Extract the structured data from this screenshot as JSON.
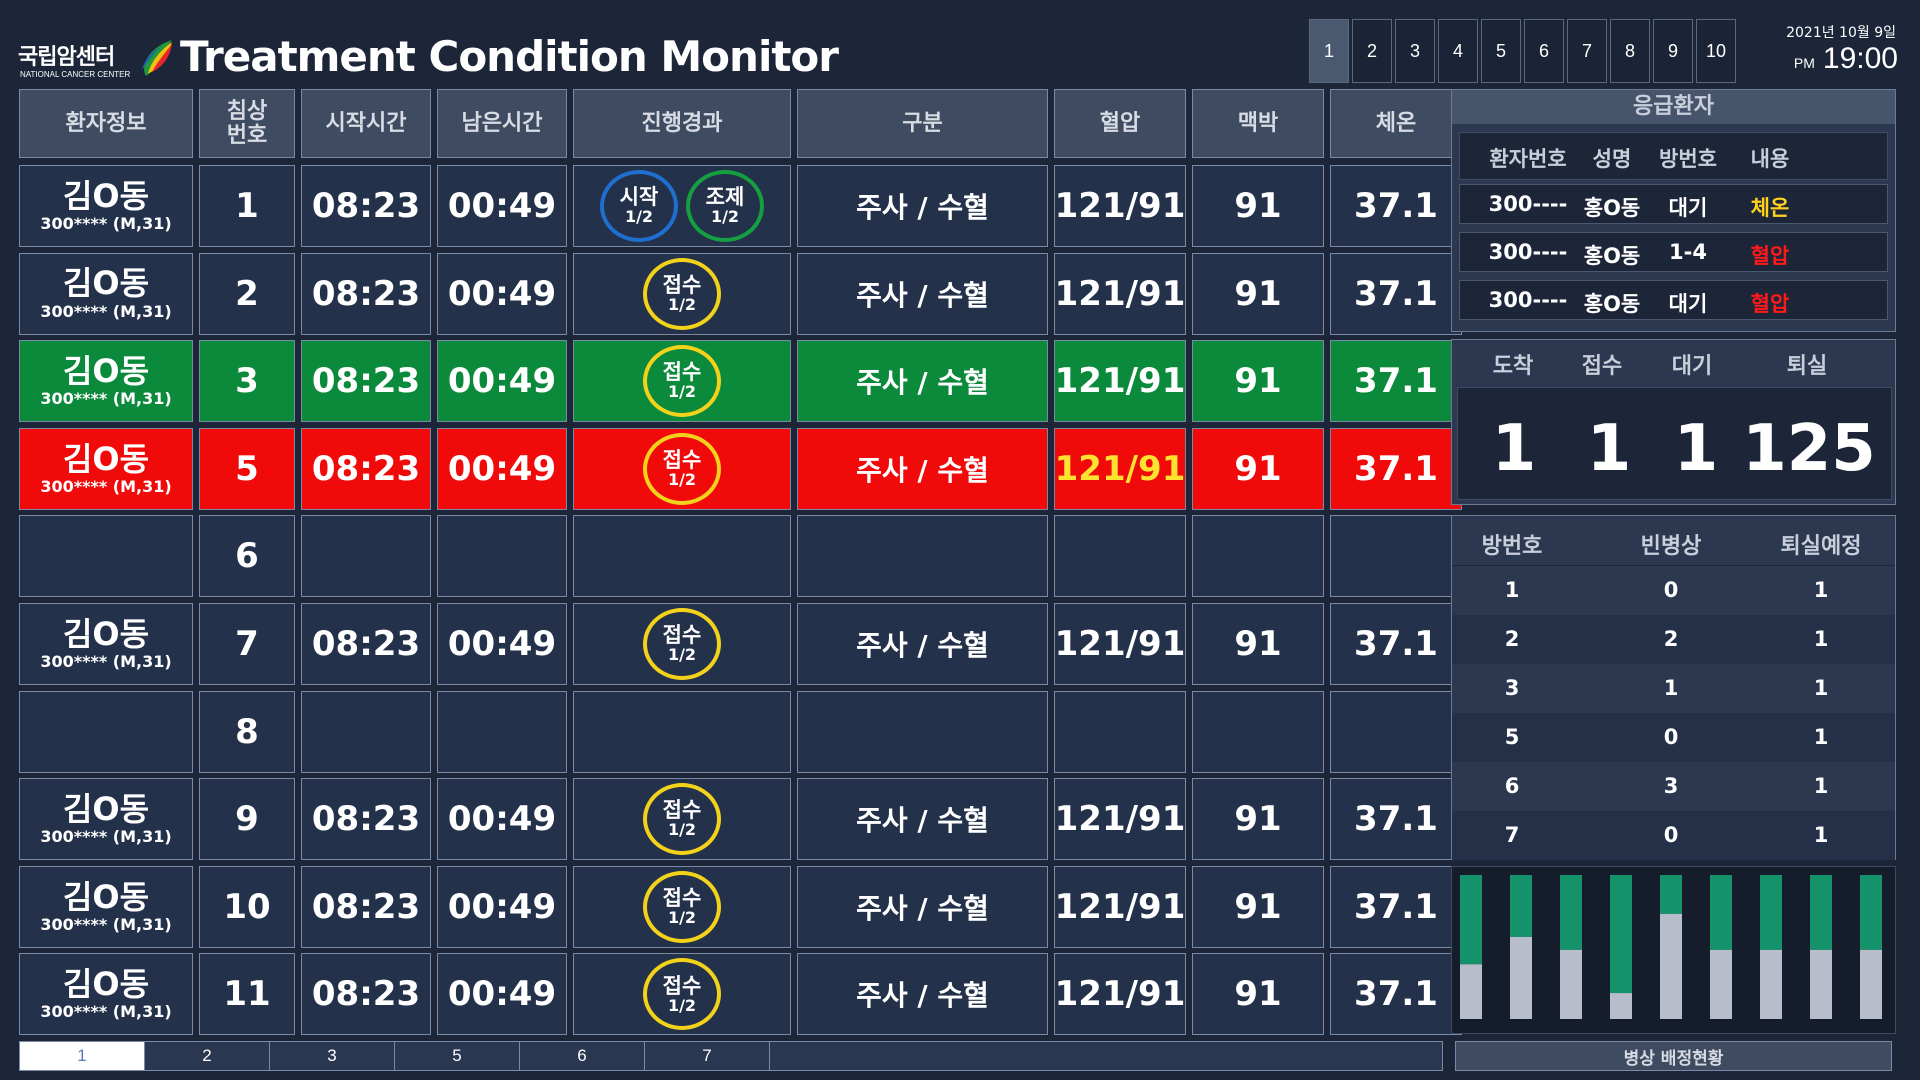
{
  "logo": {
    "name_ko": "국립암센터",
    "name_en": "NATIONAL CANCER CENTER"
  },
  "title": "Treatment Condition Monitor",
  "page_nav": {
    "pages": [
      "1",
      "2",
      "3",
      "4",
      "5",
      "6",
      "7",
      "8",
      "9",
      "10"
    ],
    "active": "1"
  },
  "datetime": {
    "date": "2021년 10월 9일",
    "ampm": "PM",
    "time": "19:00"
  },
  "table": {
    "headers": [
      "환자정보",
      "침상\n번호",
      "시작시간",
      "남은시간",
      "진행경과",
      "구분",
      "혈압",
      "맥박",
      "체온"
    ],
    "rows": [
      {
        "state": "normal",
        "name": "김O동",
        "pid": "300**** (M,31)",
        "bed": "1",
        "start": "08:23",
        "remain": "00:49",
        "status": [
          {
            "label": "시작",
            "frac": "1/2",
            "color": "blue"
          },
          {
            "label": "조제",
            "frac": "1/2",
            "color": "green"
          }
        ],
        "type": "주사 / 수혈",
        "bp": "121/91",
        "pulse": "91",
        "temp": "37.1"
      },
      {
        "state": "normal",
        "name": "김O동",
        "pid": "300**** (M,31)",
        "bed": "2",
        "start": "08:23",
        "remain": "00:49",
        "status": [
          {
            "label": "접수",
            "frac": "1/2",
            "color": "yellow"
          }
        ],
        "type": "주사 / 수혈",
        "bp": "121/91",
        "pulse": "91",
        "temp": "37.1"
      },
      {
        "state": "green",
        "name": "김O동",
        "pid": "300**** (M,31)",
        "bed": "3",
        "start": "08:23",
        "remain": "00:49",
        "status": [
          {
            "label": "접수",
            "frac": "1/2",
            "color": "yellow"
          }
        ],
        "type": "주사 / 수혈",
        "bp": "121/91",
        "pulse": "91",
        "temp": "37.1"
      },
      {
        "state": "red",
        "name": "김O동",
        "pid": "300**** (M,31)",
        "bed": "5",
        "start": "08:23",
        "remain": "00:49",
        "status": [
          {
            "label": "접수",
            "frac": "1/2",
            "color": "yellow"
          }
        ],
        "type": "주사 / 수혈",
        "bp": "121/91",
        "pulse": "91",
        "temp": "37.1"
      },
      {
        "state": "empty",
        "bed": "6"
      },
      {
        "state": "normal",
        "name": "김O동",
        "pid": "300**** (M,31)",
        "bed": "7",
        "start": "08:23",
        "remain": "00:49",
        "status": [
          {
            "label": "접수",
            "frac": "1/2",
            "color": "yellow"
          }
        ],
        "type": "주사 / 수혈",
        "bp": "121/91",
        "pulse": "91",
        "temp": "37.1"
      },
      {
        "state": "empty",
        "bed": "8"
      },
      {
        "state": "normal",
        "name": "김O동",
        "pid": "300**** (M,31)",
        "bed": "9",
        "start": "08:23",
        "remain": "00:49",
        "status": [
          {
            "label": "접수",
            "frac": "1/2",
            "color": "yellow"
          }
        ],
        "type": "주사 / 수혈",
        "bp": "121/91",
        "pulse": "91",
        "temp": "37.1"
      },
      {
        "state": "normal",
        "name": "김O동",
        "pid": "300**** (M,31)",
        "bed": "10",
        "start": "08:23",
        "remain": "00:49",
        "status": [
          {
            "label": "접수",
            "frac": "1/2",
            "color": "yellow"
          }
        ],
        "type": "주사 / 수혈",
        "bp": "121/91",
        "pulse": "91",
        "temp": "37.1"
      },
      {
        "state": "normal",
        "name": "김O동",
        "pid": "300**** (M,31)",
        "bed": "11",
        "start": "08:23",
        "remain": "00:49",
        "status": [
          {
            "label": "접수",
            "frac": "1/2",
            "color": "yellow"
          }
        ],
        "type": "주사 / 수혈",
        "bp": "121/91",
        "pulse": "91",
        "temp": "37.1"
      }
    ]
  },
  "bottom_tabs": {
    "tabs": [
      "1",
      "2",
      "3",
      "5",
      "6",
      "7"
    ],
    "active": "1"
  },
  "emergency": {
    "title": "응급환자",
    "columns": [
      "환자번호",
      "성명",
      "방번호",
      "내용"
    ],
    "rows": [
      {
        "pid": "300----",
        "name": "홍O동",
        "room": "대기",
        "content": "체온",
        "content_color": "#ffd21e"
      },
      {
        "pid": "300----",
        "name": "홍O동",
        "room": "1-4",
        "content": "혈압",
        "content_color": "#ff1a1a"
      },
      {
        "pid": "300----",
        "name": "홍O동",
        "room": "대기",
        "content": "혈압",
        "content_color": "#ff1a1a"
      }
    ]
  },
  "counts": {
    "labels": [
      "도착",
      "접수",
      "대기",
      "퇴실"
    ],
    "values": [
      "1",
      "1",
      "1",
      "125"
    ]
  },
  "rooms": {
    "columns": [
      "방번호",
      "빈병상",
      "퇴실예정"
    ],
    "rows": [
      [
        "1",
        "0",
        "1"
      ],
      [
        "2",
        "2",
        "1"
      ],
      [
        "3",
        "1",
        "1"
      ],
      [
        "5",
        "0",
        "1"
      ],
      [
        "6",
        "3",
        "1"
      ],
      [
        "7",
        "0",
        "1"
      ]
    ]
  },
  "colors": {
    "background": "#1c2638",
    "row_green": "#0c8a3c",
    "row_red": "#f00a0a",
    "bar_gray": "#b8bdcc",
    "bar_green": "#14936a"
  },
  "chart_data": {
    "type": "bar",
    "stacked": true,
    "caption": "병상 배정현황",
    "series": [
      {
        "values": [
          0.38,
          0.57,
          0.48,
          0.18,
          0.73,
          0.48,
          0.48,
          0.48,
          0.48
        ]
      },
      {
        "values": [
          0.62,
          0.43,
          0.52,
          0.82,
          0.27,
          0.52,
          0.52,
          0.52,
          0.52
        ]
      }
    ],
    "ylim": [
      0,
      1
    ]
  }
}
